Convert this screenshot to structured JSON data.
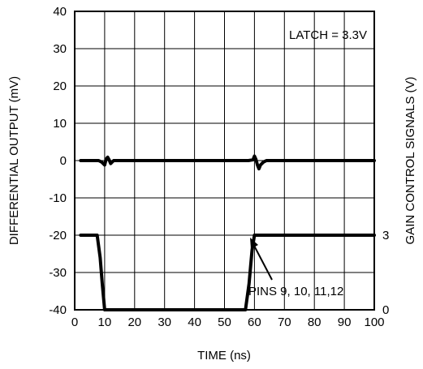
{
  "chart_data": {
    "type": "line",
    "xlabel": "TIME (ns)",
    "ylabel": "DIFFERENTIAL OUTPUT (mV)",
    "y2label": "GAIN CONTROL SIGNALS (V)",
    "xlim": [
      0,
      100
    ],
    "ylim": [
      -40,
      40
    ],
    "y2lim": [
      0,
      3
    ],
    "x_ticks": [
      "0",
      "10",
      "20",
      "30",
      "40",
      "50",
      "60",
      "70",
      "80",
      "90",
      "100"
    ],
    "y_ticks": [
      "-40",
      "-30",
      "-20",
      "-10",
      "0",
      "10",
      "20",
      "30",
      "40"
    ],
    "y2_ticks": [
      "0",
      "3"
    ],
    "grid": true,
    "annotations": {
      "latch": "LATCH = 3.3V",
      "pins": "PINS 9, 10, 11,12"
    },
    "series": [
      {
        "x": [
          2,
          8,
          9,
          10,
          10.5,
          11,
          11.5,
          12,
          13,
          20,
          30,
          40,
          50,
          58,
          59.5,
          60,
          60.5,
          61,
          61.5,
          62,
          63,
          64,
          70,
          80,
          90,
          100
        ],
        "y": [
          0,
          0,
          -0.4,
          -1.2,
          0.4,
          0.9,
          0.2,
          -0.8,
          0,
          0,
          0,
          0,
          0,
          0,
          0.2,
          1.2,
          0.3,
          -1.2,
          -2.2,
          -1.2,
          -0.4,
          0,
          0,
          0,
          0,
          0
        ]
      },
      {
        "x": [
          2,
          5,
          7.5,
          8.5,
          9.2,
          10,
          12,
          20,
          30,
          40,
          50,
          55,
          57,
          58.2,
          59.2,
          60,
          62,
          70,
          80,
          90,
          100
        ],
        "y": [
          -20,
          -20,
          -20,
          -26,
          -33,
          -40,
          -40,
          -40,
          -40,
          -40,
          -40,
          -40,
          -40,
          -33,
          -24,
          -20,
          -20,
          -20,
          -20,
          -20,
          -20
        ]
      }
    ]
  }
}
